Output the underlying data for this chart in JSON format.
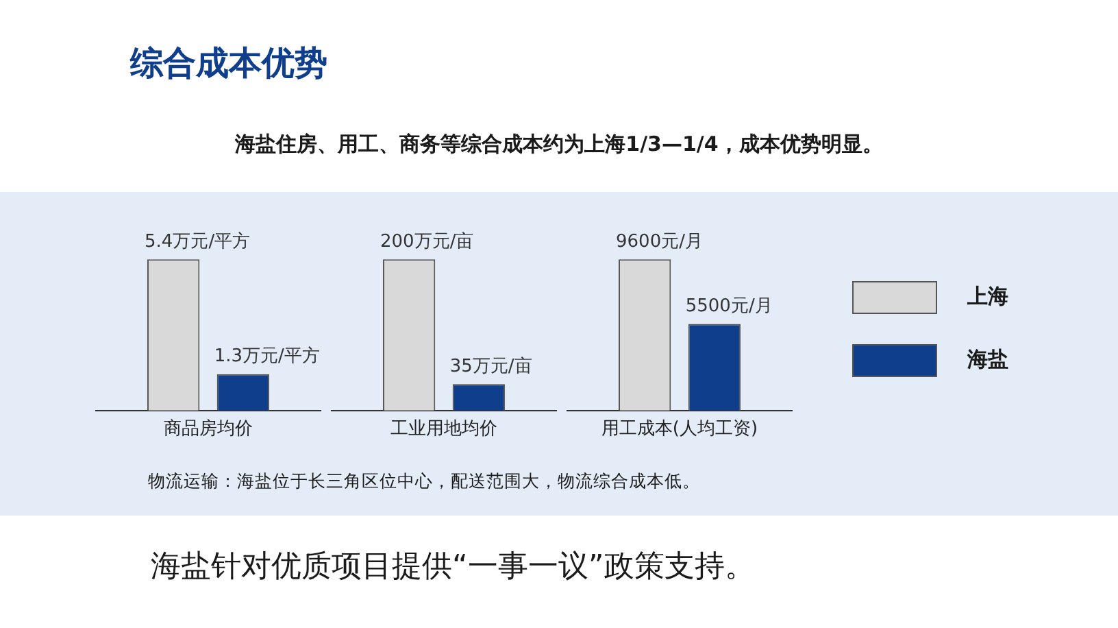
{
  "chart_data": [
    {
      "type": "bar",
      "title": "综合成本优势",
      "subtitle": "海盐住房、用工、商务等综合成本约为上海1/3—1/4，成本优势明显。",
      "annotations": [
        "物流运输：海盐位于长三角区位中心，配送范围大，物流综合成本低。",
        "海盐针对优质项目提供“一事一议”政策支持。"
      ],
      "categories": [
        "商品房均价"
      ],
      "series": [
        {
          "color": "#d9d9d9",
          "values": [
            5.4
          ],
          "value_labels": [
            "5.4万元/平方"
          ]
        },
        {
          "color": "#0f3e8c",
          "values": [
            1.3
          ],
          "value_labels": [
            "1.3万元/平方"
          ]
        }
      ],
      "legend": false,
      "grid": false
    },
    {
      "type": "bar",
      "categories": [
        "工业用地均价"
      ],
      "series": [
        {
          "color": "#d9d9d9",
          "values": [
            200
          ],
          "value_labels": [
            "200万元/亩"
          ]
        },
        {
          "color": "#0f3e8c",
          "values": [
            35
          ],
          "value_labels": [
            "35万元/亩"
          ]
        }
      ],
      "legend": false,
      "grid": false
    },
    {
      "type": "bar",
      "categories": [
        "用工成本(人均工资)"
      ],
      "series": [
        {
          "name": "上海",
          "color": "#d9d9d9",
          "values": [
            9600
          ],
          "value_labels": [
            "9600元/月"
          ]
        },
        {
          "name": "海盐",
          "color": "#0f3e8c",
          "values": [
            5500
          ],
          "value_labels": [
            "5500元/月"
          ]
        }
      ],
      "legend": "right",
      "grid": false
    }
  ]
}
